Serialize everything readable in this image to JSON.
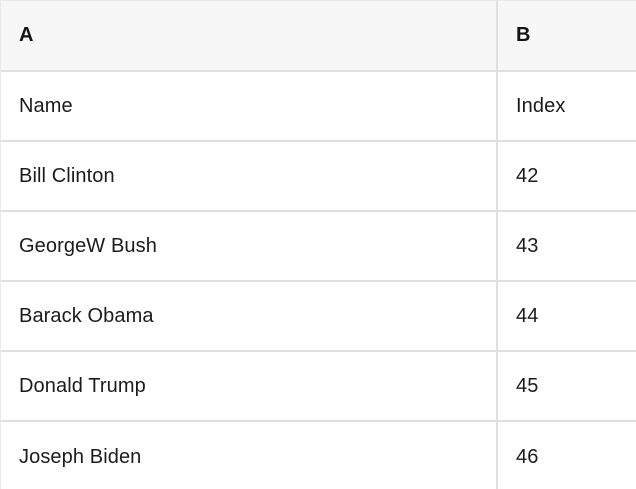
{
  "sheet": {
    "columns": [
      {
        "label": "A"
      },
      {
        "label": "B"
      }
    ],
    "rows": [
      {
        "a": "Name",
        "b": "Index"
      },
      {
        "a": "Bill Clinton",
        "b": "42"
      },
      {
        "a": "GeorgeW Bush",
        "b": "43"
      },
      {
        "a": "Barack Obama",
        "b": "44"
      },
      {
        "a": "Donald Trump",
        "b": "45"
      },
      {
        "a": "Joseph Biden",
        "b": "46"
      }
    ],
    "colors": {
      "header_background": "#f7f7f7",
      "grid_line": "#e0e0e0",
      "text": "#1b1b1b",
      "cell_background": "#ffffff"
    }
  }
}
